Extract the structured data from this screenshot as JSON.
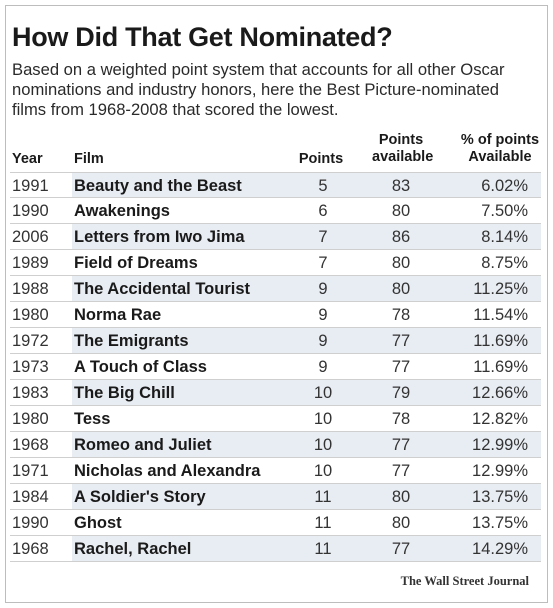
{
  "title": "How Did That Get Nominated?",
  "subtitle": "Based on a weighted point system that accounts for all other Oscar nominations and industry honors, here the Best Picture-nominated films from 1968-2008 that scored the lowest.",
  "source": "The Wall Street Journal",
  "colors": {
    "row_shade": "#e8edf3",
    "rule": "#cfcfcf",
    "text": "#1a1a1a"
  },
  "chart_data": {
    "type": "table",
    "columns": [
      "Year",
      "Film",
      "Points",
      "Points available",
      "% of points Available"
    ],
    "rows": [
      {
        "year": "1991",
        "film": "Beauty and the Beast",
        "points": "5",
        "available": "83",
        "pct": "6.02%",
        "shaded": true
      },
      {
        "year": "1990",
        "film": "Awakenings",
        "points": "6",
        "available": "80",
        "pct": "7.50%",
        "shaded": false
      },
      {
        "year": "2006",
        "film": "Letters from Iwo Jima",
        "points": "7",
        "available": "86",
        "pct": "8.14%",
        "shaded": true
      },
      {
        "year": "1989",
        "film": "Field of Dreams",
        "points": "7",
        "available": "80",
        "pct": "8.75%",
        "shaded": false
      },
      {
        "year": "1988",
        "film": "The Accidental Tourist",
        "points": "9",
        "available": "80",
        "pct": "11.25%",
        "shaded": true
      },
      {
        "year": "1980",
        "film": "Norma Rae",
        "points": "9",
        "available": "78",
        "pct": "11.54%",
        "shaded": false
      },
      {
        "year": "1972",
        "film": "The Emigrants",
        "points": "9",
        "available": "77",
        "pct": "11.69%",
        "shaded": true
      },
      {
        "year": "1973",
        "film": "A Touch of Class",
        "points": "9",
        "available": "77",
        "pct": "11.69%",
        "shaded": false
      },
      {
        "year": "1983",
        "film": "The Big Chill",
        "points": "10",
        "available": "79",
        "pct": "12.66%",
        "shaded": true
      },
      {
        "year": "1980",
        "film": "Tess",
        "points": "10",
        "available": "78",
        "pct": "12.82%",
        "shaded": false
      },
      {
        "year": "1968",
        "film": "Romeo and Juliet",
        "points": "10",
        "available": "77",
        "pct": "12.99%",
        "shaded": true
      },
      {
        "year": "1971",
        "film": "Nicholas and Alexandra",
        "points": "10",
        "available": "77",
        "pct": "12.99%",
        "shaded": false
      },
      {
        "year": "1984",
        "film": "A Soldier's Story",
        "points": "11",
        "available": "80",
        "pct": "13.75%",
        "shaded": true
      },
      {
        "year": "1990",
        "film": "Ghost",
        "points": "11",
        "available": "80",
        "pct": "13.75%",
        "shaded": false
      },
      {
        "year": "1968",
        "film": "Rachel, Rachel",
        "points": "11",
        "available": "77",
        "pct": "14.29%",
        "shaded": true
      }
    ]
  }
}
